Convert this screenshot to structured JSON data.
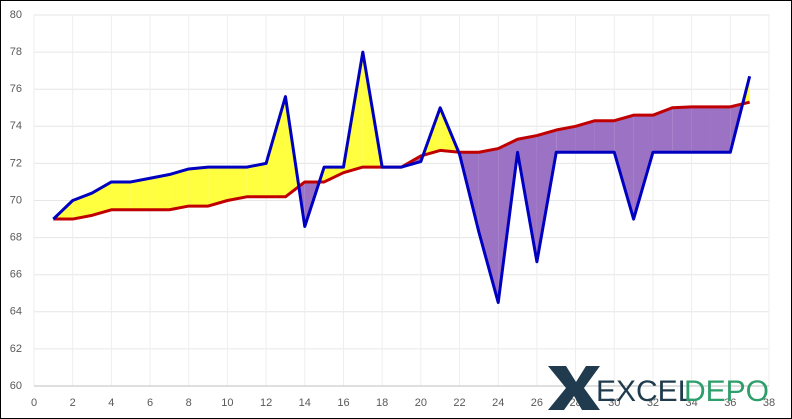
{
  "chart_data": {
    "type": "line",
    "x": [
      1,
      2,
      3,
      4,
      5,
      6,
      7,
      8,
      9,
      10,
      11,
      12,
      13,
      14,
      15,
      16,
      17,
      18,
      19,
      20,
      21,
      22,
      23,
      24,
      25,
      26,
      27,
      28,
      29,
      30,
      31,
      32,
      33,
      34,
      35,
      36,
      37
    ],
    "series": [
      {
        "color": "#c00000",
        "values": [
          69,
          69,
          69.2,
          69.5,
          69.5,
          69.5,
          69.5,
          69.7,
          69.7,
          70,
          70.2,
          70.2,
          70.2,
          71,
          71,
          71.5,
          71.8,
          71.8,
          71.8,
          72.4,
          72.7,
          72.6,
          72.6,
          72.8,
          73.3,
          73.5,
          73.8,
          74,
          74.3,
          74.3,
          74.6,
          74.6,
          75,
          75.05,
          75.05,
          75.05,
          75.3
        ]
      },
      {
        "color": "#0000c0",
        "values": [
          69,
          70,
          70.4,
          71,
          71,
          71.2,
          71.4,
          71.7,
          71.8,
          71.8,
          71.8,
          72,
          75.6,
          68.6,
          71.8,
          71.8,
          78,
          71.8,
          71.8,
          72.1,
          75,
          72.5,
          68.3,
          64.5,
          72.6,
          66.7,
          72.6,
          72.6,
          72.6,
          72.6,
          69,
          72.6,
          72.6,
          72.6,
          72.6,
          72.6,
          76.7
        ]
      }
    ],
    "fill_colors": {
      "above": "#ffff40",
      "below": "#9b72c4"
    },
    "xlim": [
      0,
      38
    ],
    "xticks": [
      0,
      2,
      4,
      6,
      8,
      10,
      12,
      14,
      16,
      18,
      20,
      22,
      24,
      26,
      28,
      30,
      32,
      34,
      36,
      38
    ],
    "ylim": [
      60,
      80
    ],
    "yticks": [
      60,
      62,
      64,
      66,
      68,
      70,
      72,
      74,
      76,
      78,
      80
    ],
    "grid": true,
    "watermark": [
      "EXCEL",
      "DEPO"
    ]
  }
}
